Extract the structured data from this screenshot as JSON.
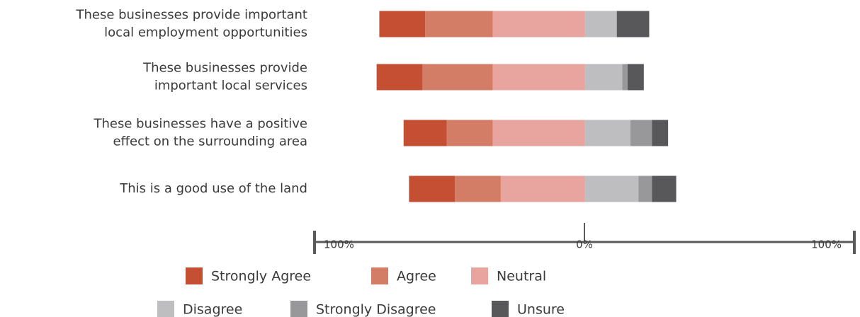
{
  "chart_data": {
    "type": "diverging-bar",
    "categories": [
      "These businesses provide important\nlocal employment opportunities",
      "These businesses provide\nimportant local services",
      "These businesses have a positive\neffect on the surrounding area",
      "This is a good use of the land"
    ],
    "series": [
      {
        "name": "Strongly Agree",
        "color": "#c44f33",
        "values": [
          17,
          17,
          16,
          17
        ]
      },
      {
        "name": "Agree",
        "color": "#d47d66",
        "values": [
          25,
          26,
          17,
          17
        ]
      },
      {
        "name": "Neutral",
        "color": "#e8a5a0",
        "values": [
          34,
          34,
          34,
          31
        ]
      },
      {
        "name": "Disagree",
        "color": "#bebec0",
        "values": [
          12,
          14,
          17,
          20
        ]
      },
      {
        "name": "Strongly Disagree",
        "color": "#98989b",
        "values": [
          0,
          2,
          8,
          5
        ]
      },
      {
        "name": "Unsure",
        "color": "#58585b",
        "values": [
          12,
          6,
          6,
          9
        ]
      }
    ],
    "xlim": [
      -100,
      100
    ],
    "xticks": [
      {
        "value": -100,
        "label": "100%"
      },
      {
        "value": 0,
        "label": "0%"
      },
      {
        "value": 100,
        "label": "100%"
      }
    ]
  }
}
